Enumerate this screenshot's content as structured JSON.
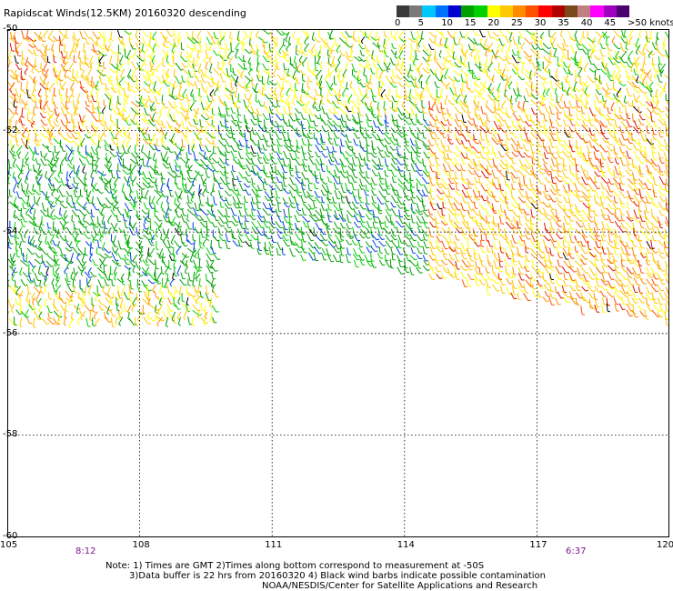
{
  "title": "Rapidscat Winds(12.5KM) 20160320 descending",
  "legend": {
    "colors": [
      "#3a3a3a",
      "#7a7a7a",
      "#00c8ff",
      "#0070ff",
      "#0000d0",
      "#00a000",
      "#00d000",
      "#ffff00",
      "#ffc800",
      "#ff8c00",
      "#ff5000",
      "#ff0000",
      "#b00000",
      "#7a4a1a",
      "#c08080",
      "#ff00ff",
      "#a000c0",
      "#4a0070"
    ],
    "ticks": [
      "0",
      "5",
      "10",
      "15",
      "20",
      "25",
      "30",
      "35",
      "40",
      "45",
      ">50 knots"
    ]
  },
  "axes": {
    "x_ticks": [
      "105",
      "108",
      "111",
      "114",
      "117",
      "120"
    ],
    "y_ticks": [
      "-50",
      "-52",
      "-54",
      "-56",
      "-58",
      "-60"
    ]
  },
  "map_data": {
    "lon_range": [
      105,
      120
    ],
    "lat_range": [
      -60,
      -50
    ],
    "grid": "dotted",
    "swaths": [
      {
        "desc": "western swath",
        "lon": [
          105,
          109.7
        ],
        "lat": [
          -55.7,
          -50
        ]
      },
      {
        "desc": "eastern swath",
        "lon": [
          109.7,
          120
        ],
        "lat_south_edge": [
          [
            109.7,
            -54.2
          ],
          [
            114,
            -54.7
          ],
          [
            117,
            -55.3
          ],
          [
            120,
            -55.7
          ]
        ],
        "lat_north": -50
      }
    ],
    "wind_speed_regions": [
      {
        "region": "north-west",
        "speed_range_knots": [
          15,
          35
        ]
      },
      {
        "region": "west-central",
        "speed_range_knots": [
          10,
          20
        ]
      },
      {
        "region": "central",
        "speed_range_knots": [
          10,
          20
        ]
      },
      {
        "region": "north",
        "speed_range_knots": [
          15,
          25
        ]
      },
      {
        "region": "east",
        "speed_range_knots": [
          20,
          35
        ]
      },
      {
        "region": "south",
        "speed_range_knots": [
          15,
          30
        ]
      }
    ]
  },
  "times": {
    "left": "8:12",
    "right": "6:37"
  },
  "notes": [
    "Note: 1) Times are GMT 2)Times along bottom correspond to measurement at -50S",
    "3)Data buffer is 22 hrs from 20160320 4) Black wind barbs indicate possible contamination",
    "NOAA/NESDIS/Center for Satellite Applications and Research"
  ]
}
